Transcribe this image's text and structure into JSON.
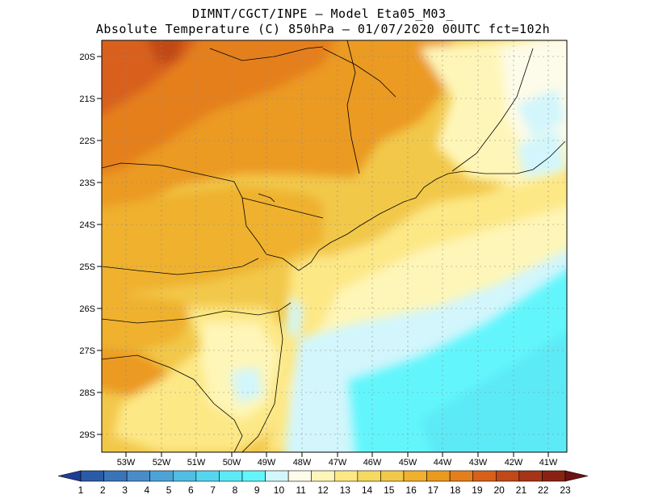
{
  "title": {
    "line1": "DIMNT/CGCT/INPE –  Model Eta05_M03_",
    "line2": "Absolute Temperature (C) 850hPa –  01/07/2020 00UTC fct=102h"
  },
  "map": {
    "lat_labels": [
      "20S",
      "21S",
      "22S",
      "23S",
      "24S",
      "25S",
      "26S",
      "27S",
      "28S",
      "29S"
    ],
    "lon_labels": [
      "53W",
      "52W",
      "51W",
      "50W",
      "49W",
      "48W",
      "47W",
      "46W",
      "45W",
      "44W",
      "43W",
      "42W",
      "41W"
    ]
  },
  "colorbar": {
    "labels": [
      "1",
      "2",
      "3",
      "4",
      "5",
      "6",
      "7",
      "8",
      "9",
      "10",
      "11",
      "12",
      "13",
      "14",
      "15",
      "16",
      "17",
      "18",
      "19",
      "20",
      "21",
      "22",
      "23"
    ],
    "colors": [
      "#1f3f94",
      "#2a5ba6",
      "#3a74b8",
      "#4a8cc8",
      "#4ea3d6",
      "#52bde2",
      "#56d6ee",
      "#5ceaf6",
      "#62f6fc",
      "#d2f6fc",
      "#fdfbe9",
      "#fef6b8",
      "#fde886",
      "#f5d960",
      "#f2c84a",
      "#efb12e",
      "#eb9a20",
      "#e57f1c",
      "#d8601a",
      "#c14818",
      "#a63416",
      "#8a2214",
      "#6b1212"
    ]
  }
}
